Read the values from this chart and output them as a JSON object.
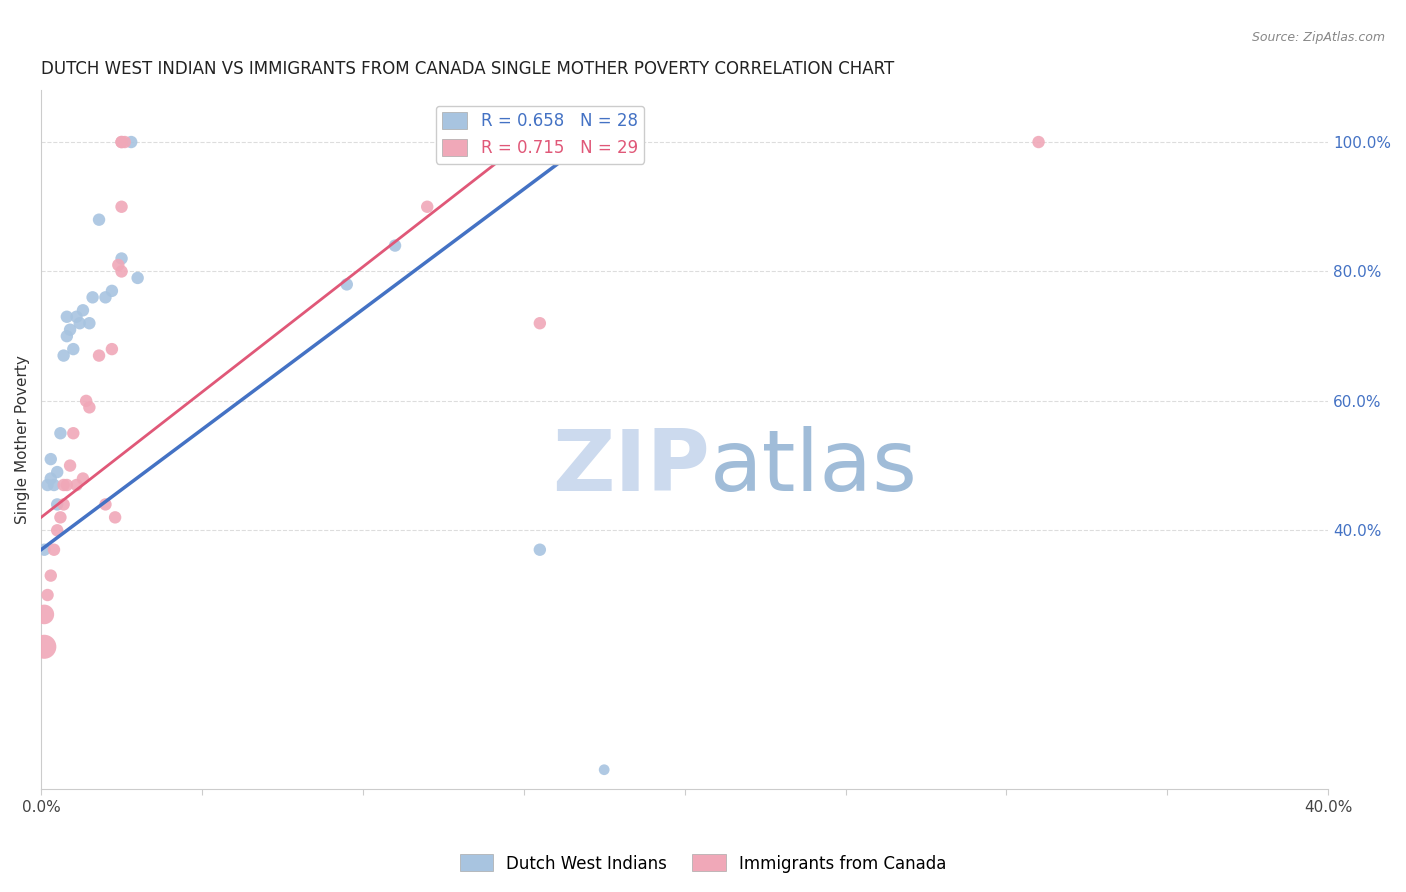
{
  "title": "DUTCH WEST INDIAN VS IMMIGRANTS FROM CANADA SINGLE MOTHER POVERTY CORRELATION CHART",
  "source": "Source: ZipAtlas.com",
  "ylabel": "Single Mother Poverty",
  "xlim": [
    0.0,
    0.4
  ],
  "ylim": [
    0.0,
    1.08
  ],
  "xticks": [
    0.0,
    0.05,
    0.1,
    0.15,
    0.2,
    0.25,
    0.3,
    0.35,
    0.4
  ],
  "xticklabels": [
    "0.0%",
    "",
    "",
    "",
    "",
    "",
    "",
    "",
    "40.0%"
  ],
  "yticks_right": [
    0.4,
    0.6,
    0.8,
    1.0
  ],
  "yticklabels_right": [
    "40.0%",
    "60.0%",
    "80.0%",
    "100.0%"
  ],
  "legend_blue_r": "R = 0.658",
  "legend_blue_n": "N = 28",
  "legend_pink_r": "R = 0.715",
  "legend_pink_n": "N = 29",
  "blue_color": "#a8c4e0",
  "pink_color": "#f0a8b8",
  "line_blue": "#4472c4",
  "line_pink": "#e05878",
  "watermark_zip": "ZIP",
  "watermark_atlas": "atlas",
  "blue_scatter_x": [
    0.001,
    0.002,
    0.003,
    0.003,
    0.004,
    0.005,
    0.005,
    0.006,
    0.007,
    0.008,
    0.008,
    0.009,
    0.01,
    0.011,
    0.012,
    0.013,
    0.015,
    0.016,
    0.018,
    0.02,
    0.022,
    0.025,
    0.028,
    0.03,
    0.095,
    0.11,
    0.155,
    0.175
  ],
  "blue_scatter_y": [
    0.37,
    0.47,
    0.48,
    0.51,
    0.47,
    0.44,
    0.49,
    0.55,
    0.67,
    0.7,
    0.73,
    0.71,
    0.68,
    0.73,
    0.72,
    0.74,
    0.72,
    0.76,
    0.88,
    0.76,
    0.77,
    0.82,
    1.0,
    0.79,
    0.78,
    0.84,
    0.37,
    0.03
  ],
  "blue_scatter_size": [
    80,
    80,
    80,
    80,
    80,
    80,
    80,
    80,
    80,
    80,
    80,
    80,
    80,
    80,
    80,
    80,
    80,
    80,
    80,
    80,
    80,
    80,
    80,
    80,
    80,
    80,
    80,
    60
  ],
  "pink_scatter_x": [
    0.001,
    0.001,
    0.002,
    0.003,
    0.004,
    0.005,
    0.006,
    0.007,
    0.007,
    0.008,
    0.009,
    0.01,
    0.011,
    0.013,
    0.014,
    0.015,
    0.018,
    0.02,
    0.022,
    0.023,
    0.024,
    0.025,
    0.025,
    0.025,
    0.025,
    0.026,
    0.12,
    0.155,
    0.31
  ],
  "pink_scatter_y": [
    0.22,
    0.27,
    0.3,
    0.33,
    0.37,
    0.4,
    0.42,
    0.44,
    0.47,
    0.47,
    0.5,
    0.55,
    0.47,
    0.48,
    0.6,
    0.59,
    0.67,
    0.44,
    0.68,
    0.42,
    0.81,
    0.8,
    0.9,
    1.0,
    1.0,
    1.0,
    0.9,
    0.72,
    1.0
  ],
  "pink_scatter_size": [
    300,
    200,
    80,
    80,
    80,
    80,
    80,
    80,
    80,
    80,
    80,
    80,
    80,
    80,
    80,
    80,
    80,
    80,
    80,
    80,
    80,
    80,
    80,
    80,
    80,
    80,
    80,
    80,
    80
  ],
  "blue_line_x": [
    0.0,
    0.175
  ],
  "blue_line_y": [
    0.37,
    1.02
  ],
  "pink_line_x": [
    0.0,
    0.155
  ],
  "pink_line_y": [
    0.42,
    1.02
  ]
}
